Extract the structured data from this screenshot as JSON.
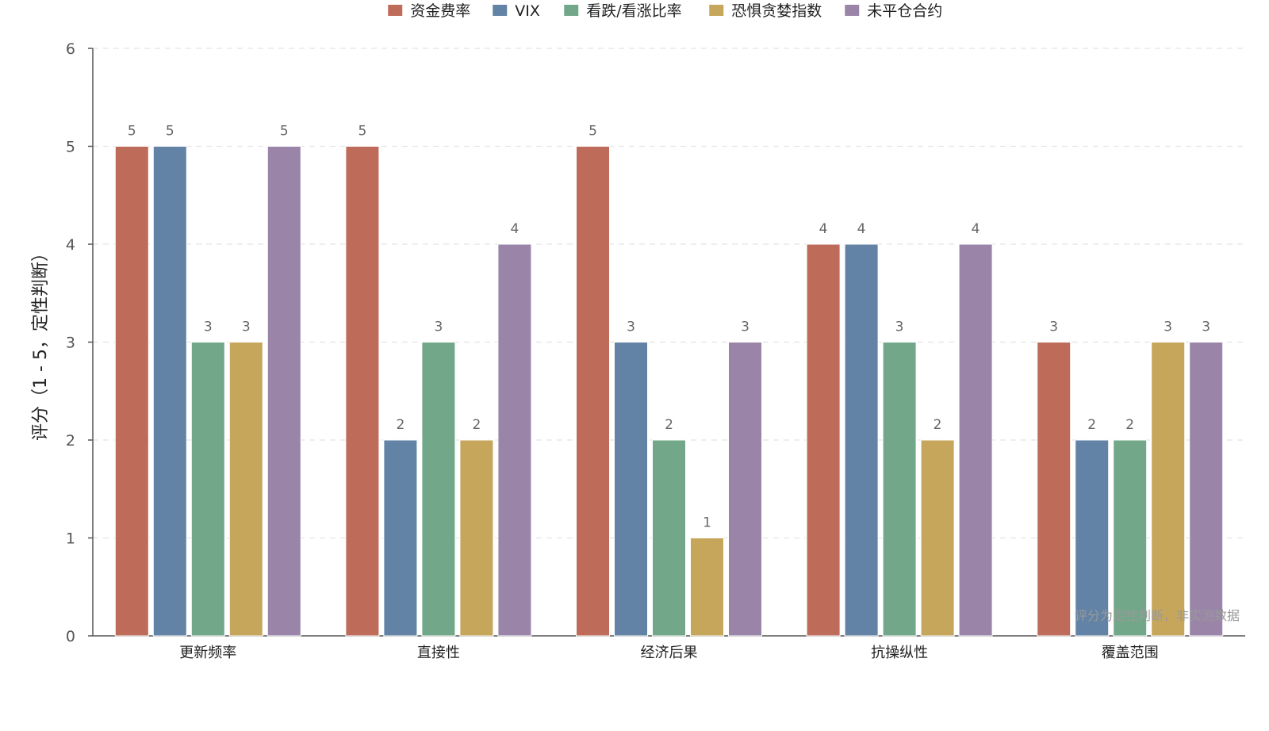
{
  "chart_data": {
    "type": "bar",
    "title": "",
    "xlabel": "",
    "ylabel": "评分（1 - 5，定性判断）",
    "ylim": [
      0,
      6
    ],
    "yticks": [
      0,
      1,
      2,
      3,
      4,
      5,
      6
    ],
    "grid": "horizontal-dashed",
    "legend_position": "top-center",
    "categories": [
      "更新频率",
      "直接性",
      "经济后果",
      "抗操纵性",
      "覆盖范围"
    ],
    "series": [
      {
        "name": "资金费率",
        "color": "#bf6b5a",
        "values": [
          5,
          5,
          5,
          4,
          3
        ]
      },
      {
        "name": "VIX",
        "color": "#6283a6",
        "values": [
          5,
          2,
          3,
          4,
          2
        ]
      },
      {
        "name": "看跌/看涨比率",
        "color": "#72a889",
        "values": [
          3,
          3,
          2,
          3,
          2
        ]
      },
      {
        "name": "恐惧贪婪指数",
        "color": "#c6a65b",
        "values": [
          3,
          2,
          1,
          2,
          3
        ]
      },
      {
        "name": "未平仓合约",
        "color": "#9a85a8",
        "values": [
          5,
          4,
          3,
          4,
          3
        ]
      }
    ],
    "annotation": "评分为定性判断，非实测数据"
  }
}
